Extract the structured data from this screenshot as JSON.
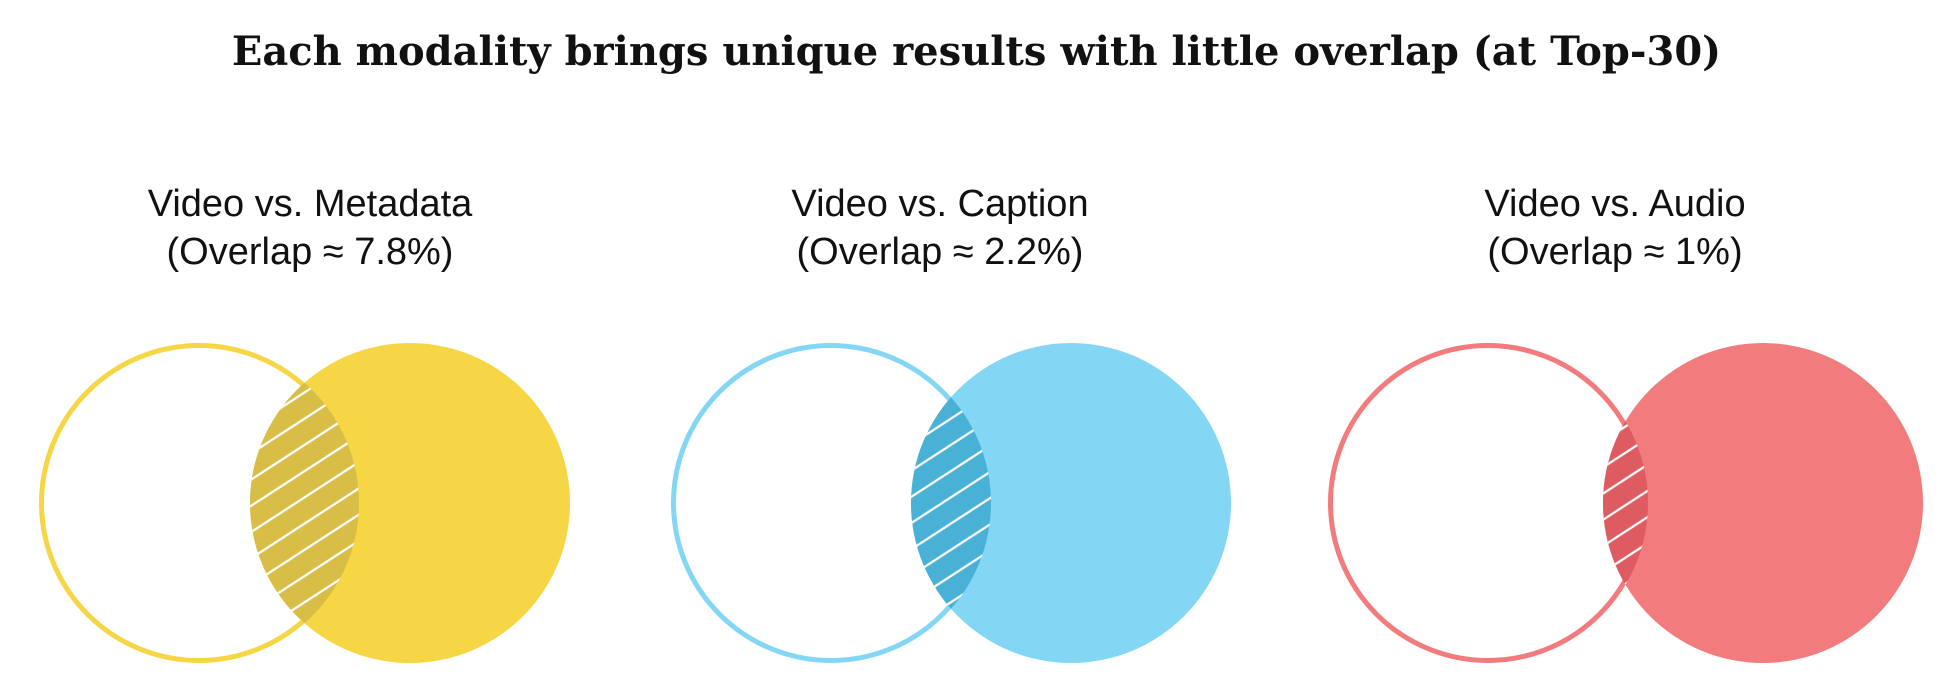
{
  "title": "Each modality brings unique results with little overlap (at Top-30)",
  "panels": [
    {
      "name": "Video vs. Metadata",
      "overlap_label": "(Overlap ≈ 7.8%)",
      "overlap_pct": 7.8,
      "color": "#F6D645",
      "overlap_color": "#D8BD47"
    },
    {
      "name": "Video vs. Caption",
      "overlap_label": "(Overlap ≈ 2.2%)",
      "overlap_pct": 2.2,
      "color": "#83D7F4",
      "overlap_color": "#4AB1D6"
    },
    {
      "name": "Video vs. Audio",
      "overlap_label": "(Overlap ≈ 1%)",
      "overlap_pct": 1,
      "color": "#F27B7D",
      "overlap_color": "#DE5C61"
    }
  ]
}
